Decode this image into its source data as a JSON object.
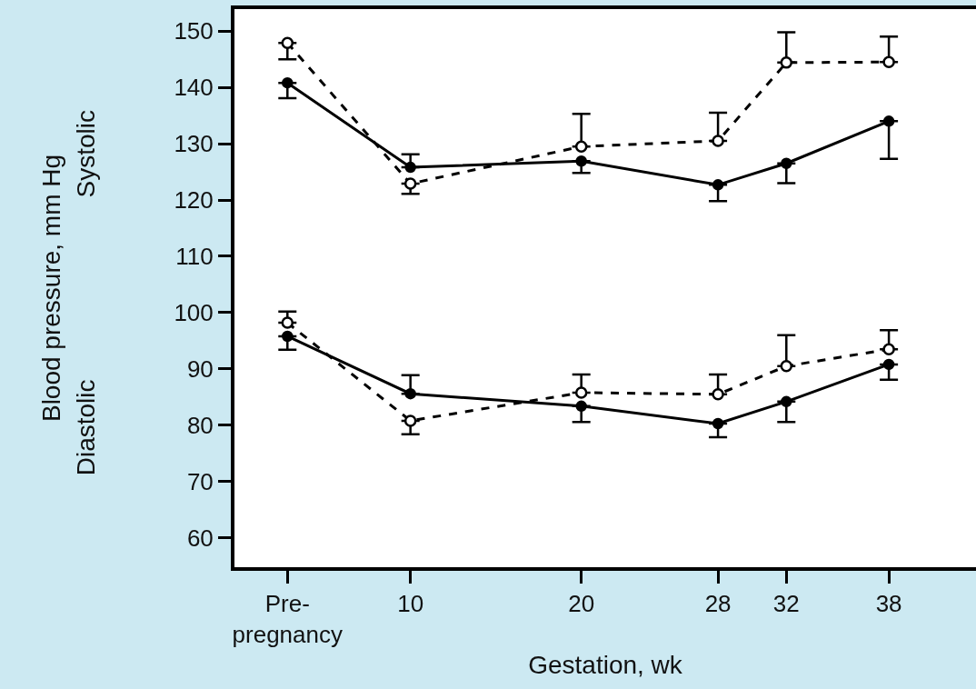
{
  "chart_data": {
    "type": "line",
    "xlabel": "Gestation, wk",
    "ylabel": "Blood pressure, mm Hg",
    "annotations": [
      "Systolic",
      "Diastolic"
    ],
    "x": [
      2.8,
      10,
      20,
      28,
      32,
      38
    ],
    "xlim": [
      -0.3,
      43.1
    ],
    "xticks": [
      {
        "value": 2.8,
        "label": "Pre-\npregnancy"
      },
      10,
      20,
      28,
      32,
      38
    ],
    "ylim": [
      54.8,
      153.9
    ],
    "yticks": [
      60,
      70,
      80,
      90,
      100,
      110,
      120,
      130,
      140,
      150
    ],
    "marker": "circle",
    "series": [
      {
        "color": "#000000",
        "line_style": "solid",
        "values": [
          140.8,
          125.8,
          126.9,
          122.7,
          126.5,
          134
        ],
        "errors": [
          [
            138.1,
            140.8
          ],
          [
            125.8,
            128.1
          ],
          [
            124.8,
            126.9
          ],
          [
            119.8,
            122.7
          ],
          [
            123,
            126.5
          ],
          [
            127.3,
            134
          ]
        ]
      },
      {
        "color": "#000000",
        "line_style": "dashed",
        "values": [
          147.9,
          122.9,
          129.5,
          130.5,
          144.4,
          144.5
        ],
        "errors": [
          [
            145,
            147.9
          ],
          [
            121.1,
            122.9
          ],
          [
            129.5,
            135.3
          ],
          [
            130.5,
            135.5
          ],
          [
            144.4,
            149.8
          ],
          [
            144.5,
            149
          ]
        ]
      },
      {
        "color": "#000000",
        "line_style": "solid",
        "values": [
          95.8,
          85.6,
          83.4,
          80.3,
          84.2,
          90.8
        ],
        "errors": [
          [
            93.4,
            95.8
          ],
          [
            85.6,
            88.9
          ],
          [
            80.6,
            83.4
          ],
          [
            77.9,
            80.3
          ],
          [
            80.6,
            84.2
          ],
          [
            88.1,
            90.8
          ]
        ]
      },
      {
        "color": "#000000",
        "line_style": "dashed",
        "values": [
          98.2,
          80.8,
          85.8,
          85.5,
          90.5,
          93.5
        ],
        "errors": [
          [
            98.2,
            100.2
          ],
          [
            78.4,
            80.8
          ],
          [
            85.8,
            89
          ],
          [
            85.5,
            89
          ],
          [
            90.5,
            96
          ],
          [
            93.5,
            96.9
          ]
        ]
      }
    ]
  }
}
